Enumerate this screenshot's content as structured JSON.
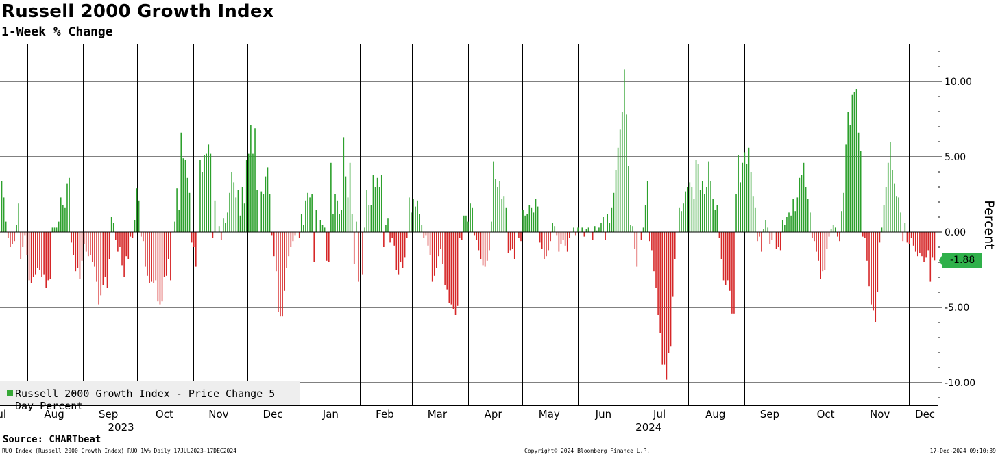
{
  "title": "Russell 2000 Growth Index",
  "subtitle": "1-Week % Change",
  "source": "Source: CHARTbeat",
  "footer": {
    "left": "RUO Index (Russell 2000 Growth Index) RUO 1W% Daily 17JUL2023-17DEC2024",
    "center": "Copyright© 2024 Bloomberg Finance L.P.",
    "right": "17-Dec-2024 09:10:39"
  },
  "legend_label": "Russell 2000 Growth Index - Price Change 5 Day Percent",
  "last_value_label": "-1.88",
  "colors": {
    "positive": "#2ca02c",
    "negative": "#d62728",
    "grid": "#000000",
    "badge": "#2fb04a"
  },
  "chart_data": {
    "type": "bar",
    "title": "Russell 2000 Growth Index",
    "subtitle": "1-Week % Change",
    "ylabel": "Percent",
    "ylim": [
      -11.5,
      12.5
    ],
    "yticks": [
      10,
      5,
      0,
      -5,
      -10
    ],
    "ytick_labels": [
      "10.00",
      "5.00",
      "0.00",
      "-5.00",
      "-10.00"
    ],
    "y_axis_side": "right",
    "grid": true,
    "legend_position": "bottom-left",
    "x_start": "2023-07-17",
    "x_end": "2024-12-17",
    "month_labels": [
      {
        "label": "Jul",
        "date": "2023-07-17"
      },
      {
        "label": "Aug",
        "date": "2023-08-16"
      },
      {
        "label": "Sep",
        "date": "2023-09-15"
      },
      {
        "label": "Oct",
        "date": "2023-10-16"
      },
      {
        "label": "Nov",
        "date": "2023-11-15"
      },
      {
        "label": "Dec",
        "date": "2023-12-15"
      },
      {
        "label": "Jan",
        "date": "2024-01-16"
      },
      {
        "label": "Feb",
        "date": "2024-02-15"
      },
      {
        "label": "Mar",
        "date": "2024-03-15"
      },
      {
        "label": "Apr",
        "date": "2024-04-15"
      },
      {
        "label": "May",
        "date": "2024-05-16"
      },
      {
        "label": "Jun",
        "date": "2024-06-15"
      },
      {
        "label": "Jul",
        "date": "2024-07-16"
      },
      {
        "label": "Aug",
        "date": "2024-08-16"
      },
      {
        "label": "Sep",
        "date": "2024-09-15"
      },
      {
        "label": "Oct",
        "date": "2024-10-16"
      },
      {
        "label": "Nov",
        "date": "2024-11-15"
      },
      {
        "label": "Dec",
        "date": "2024-12-10"
      }
    ],
    "month_boundaries": [
      "2023-08-01",
      "2023-09-01",
      "2023-10-01",
      "2023-11-01",
      "2023-12-01",
      "2024-01-01",
      "2024-02-01",
      "2024-03-01",
      "2024-04-01",
      "2024-05-01",
      "2024-06-01",
      "2024-07-01",
      "2024-08-01",
      "2024-09-01",
      "2024-10-01",
      "2024-11-01",
      "2024-12-01"
    ],
    "year_labels": [
      {
        "label": "2023",
        "date": "2023-09-22"
      },
      {
        "label": "2024",
        "date": "2024-07-10"
      }
    ],
    "year_divider": "2024-01-01",
    "last_value": -1.88,
    "series": [
      {
        "name": "Russell 2000 Growth Index - Price Change 5 Day Percent",
        "values": [
          3.4,
          2.3,
          0.7,
          -0.4,
          -1.0,
          -0.8,
          -0.6,
          0.5,
          1.9,
          -1.8,
          -1.0,
          -0.2,
          -1.5,
          -3.2,
          -3.4,
          -3.0,
          -2.8,
          -2.4,
          -2.5,
          -3.0,
          -2.8,
          -3.7,
          -3.2,
          -3.1,
          0.3,
          0.3,
          0.3,
          0.7,
          2.3,
          1.8,
          1.6,
          3.2,
          3.6,
          -0.7,
          -1.5,
          -2.6,
          -2.4,
          -3.1,
          -1.9,
          -0.8,
          -1.3,
          -1.6,
          -1.5,
          -2.0,
          -2.3,
          -3.3,
          -4.8,
          -4.2,
          -3.5,
          -3.0,
          -3.7,
          -1.8,
          1.0,
          0.6,
          -0.5,
          -1.3,
          -1.0,
          -2.2,
          -3.0,
          -1.6,
          -1.8,
          -0.3,
          -0.4,
          0.8,
          2.9,
          2.1,
          -0.3,
          -0.6,
          -2.3,
          -2.9,
          -3.4,
          -3.3,
          -3.4,
          -3.2,
          -4.6,
          -4.8,
          -4.6,
          -3.0,
          -2.9,
          -1.8,
          -3.2,
          0.0,
          0.7,
          2.9,
          1.5,
          6.6,
          4.9,
          4.8,
          3.6,
          2.6,
          -0.7,
          -1.0,
          -2.3,
          0.0,
          4.8,
          4.0,
          5.1,
          5.2,
          5.8,
          5.2,
          -0.4,
          2.1,
          0.0,
          0.4,
          -0.5,
          0.9,
          0.6,
          1.3,
          2.6,
          4.0,
          3.3,
          2.3,
          2.8,
          1.1,
          3.0,
          1.9,
          4.8,
          5.2,
          7.1,
          5.2,
          6.9,
          2.8,
          0.0,
          2.7,
          2.5,
          3.7,
          4.3,
          2.5,
          -0.2,
          -1.6,
          -2.6,
          -5.3,
          -5.6,
          -5.6,
          -3.9,
          -2.4,
          -1.6,
          -1.0,
          -0.6,
          -0.2,
          0.0,
          -0.4,
          1.2,
          0.5,
          2.1,
          2.6,
          2.3,
          2.5,
          -2.0,
          1.5,
          0.0,
          0.8,
          0.5,
          0.3,
          -1.9,
          -2.0,
          4.6,
          1.2,
          2.5,
          2.1,
          1.2,
          1.5,
          6.3,
          3.7,
          2.3,
          4.6,
          1.2,
          -2.1,
          0.7,
          -3.3,
          0.0,
          -2.8,
          0.3,
          2.8,
          1.8,
          1.8,
          3.8,
          3.0,
          3.6,
          3.0,
          3.8,
          -1.0,
          0.5,
          0.9,
          -0.7,
          -0.4,
          -0.9,
          -2.5,
          -2.8,
          -2.0,
          -2.4,
          -1.7,
          -0.4,
          2.3,
          1.3,
          2.2,
          1.7,
          2.1,
          1.2,
          0.5,
          -0.4,
          -0.2,
          -0.9,
          -1.5,
          -3.3,
          -2.9,
          -2.4,
          -1.6,
          -1.1,
          -2.1,
          -3.5,
          -3.8,
          -4.7,
          -4.8,
          -5.1,
          -5.5,
          -4.9,
          -0.4,
          -0.5,
          1.1,
          1.1,
          0.7,
          1.9,
          1.6,
          -0.2,
          -0.5,
          -1.2,
          -1.8,
          -2.2,
          -2.3,
          -1.9,
          -1.2,
          0.7,
          4.7,
          3.5,
          3.0,
          3.4,
          2.2,
          2.4,
          1.6,
          -1.4,
          -1.2,
          -1.1,
          -1.8,
          0.0,
          -0.4,
          -0.6,
          1.5,
          1.1,
          1.2,
          1.8,
          1.6,
          1.3,
          2.2,
          1.7,
          -0.7,
          -1.1,
          -1.8,
          -1.6,
          -1.2,
          -0.6,
          0.6,
          0.4,
          -0.2,
          -1.3,
          -0.8,
          -0.5,
          -0.9,
          -1.3,
          -0.4,
          0.0,
          0.3,
          -0.2,
          0.3,
          0.0,
          0.3,
          -0.3,
          0.2,
          0.3,
          0.0,
          -0.5,
          0.4,
          0.1,
          0.3,
          0.6,
          1.0,
          -0.5,
          1.2,
          0.6,
          1.6,
          2.6,
          4.1,
          5.6,
          6.8,
          8.0,
          10.8,
          7.8,
          4.4,
          0.5,
          0.4,
          -1.1,
          -2.3,
          0.0,
          -0.5,
          0.3,
          1.8,
          3.4,
          -0.6,
          -1.2,
          -2.6,
          -3.7,
          -5.5,
          -6.7,
          -8.8,
          -8.8,
          -9.8,
          -8.0,
          -7.6,
          -4.3,
          -1.8,
          0.0,
          1.6,
          1.4,
          1.9,
          2.7,
          3.0,
          3.3,
          3.0,
          2.2,
          4.8,
          4.5,
          2.8,
          3.4,
          2.5,
          3.0,
          4.7,
          3.4,
          2.2,
          1.5,
          1.8,
          -0.4,
          -1.8,
          -3.2,
          -3.5,
          -3.2,
          -3.9,
          -5.4,
          -5.4,
          2.5,
          5.1,
          3.3,
          4.6,
          5.3,
          4.5,
          5.6,
          4.0,
          2.4,
          1.6,
          -0.6,
          -0.3,
          -1.3,
          0.2,
          0.8,
          0.3,
          -0.8,
          -0.5,
          0.0,
          -1.1,
          -1.0,
          -1.2,
          0.8,
          0.5,
          1.0,
          1.3,
          1.1,
          2.2,
          1.4,
          2.3,
          3.6,
          3.8,
          4.6,
          3.0,
          2.2,
          1.3,
          -0.4,
          -0.6,
          -1.3,
          -1.9,
          -3.1,
          -2.6,
          -2.5,
          -1.1,
          -0.3,
          0.2,
          0.5,
          0.3,
          -0.3,
          -0.6,
          1.4,
          2.6,
          5.8,
          8.0,
          7.1,
          9.1,
          9.3,
          9.5,
          6.6,
          5.4,
          -0.3,
          -0.4,
          -1.9,
          -3.6,
          -4.8,
          -5.2,
          -6.0,
          -4.0,
          -0.7,
          0.3,
          1.8,
          3.0,
          4.6,
          6.0,
          4.1,
          3.2,
          2.4,
          2.3,
          1.3,
          -0.6,
          0.6,
          -0.7,
          -0.8,
          -0.4,
          -0.9,
          -1.3,
          -1.6,
          -1.4,
          -1.6,
          -2.0,
          -1.7,
          -1.2,
          -3.3,
          -1.7,
          -1.88
        ]
      }
    ]
  }
}
